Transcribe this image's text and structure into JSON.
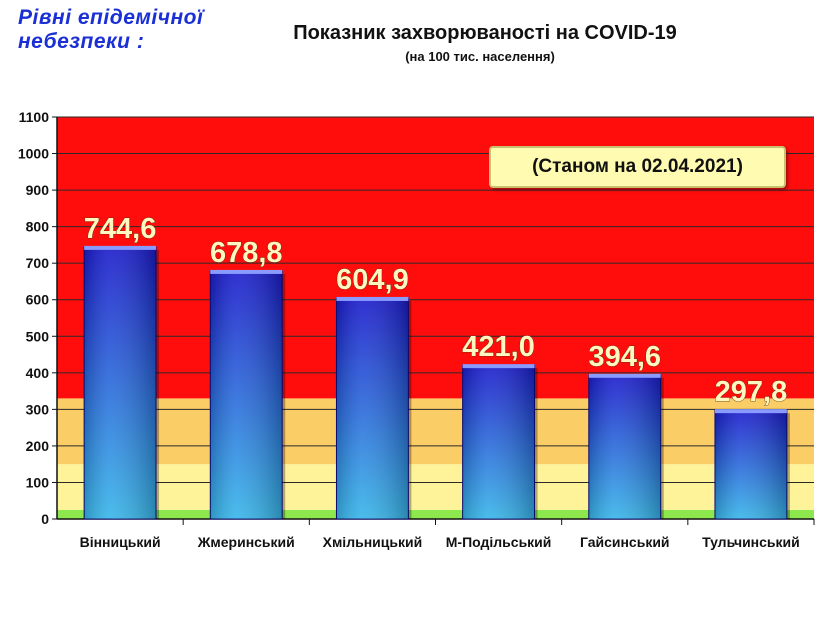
{
  "corner_title_line1": "Рівні епідемічної",
  "corner_title_line2": "небезпеки :",
  "title": "Показник захворюваності на COVID-19",
  "subtitle": "(на 100  тис. населення)",
  "date_note": "(Станом на 02.04.2021)",
  "colors": {
    "zone_red": "#ff0d0d",
    "zone_orange": "#fbcd66",
    "zone_yellow": "#fff39a",
    "zone_green": "#8ce84c",
    "bar_top": "#1a1acb",
    "bar_bottom": "#37b6e9",
    "value_label": "#fff7c2"
  },
  "chart_data": {
    "type": "bar",
    "title": "Показник захворюваності на COVID-19",
    "subtitle": "(на 100  тис. населення)",
    "categories": [
      "Вінницький",
      "Жмеринський",
      "Хмільницький",
      "М-Подільський",
      "Гайсинський",
      "Тульчинський"
    ],
    "values": [
      744.6,
      678.8,
      604.9,
      421.0,
      394.6,
      297.8
    ],
    "value_labels": [
      "744,6",
      "678,8",
      "604,9",
      "421,0",
      "394,6",
      "297,8"
    ],
    "ylim": [
      0,
      1100
    ],
    "yticks": [
      0,
      100,
      200,
      300,
      400,
      500,
      600,
      700,
      800,
      900,
      1000,
      1100
    ],
    "grid": true,
    "background_zones": [
      {
        "from": 0,
        "to": 25,
        "color": "#8ce84c"
      },
      {
        "from": 25,
        "to": 150,
        "color": "#fff39a"
      },
      {
        "from": 150,
        "to": 330,
        "color": "#fbcd66"
      },
      {
        "from": 330,
        "to": 1100,
        "color": "#ff0d0d"
      }
    ]
  }
}
